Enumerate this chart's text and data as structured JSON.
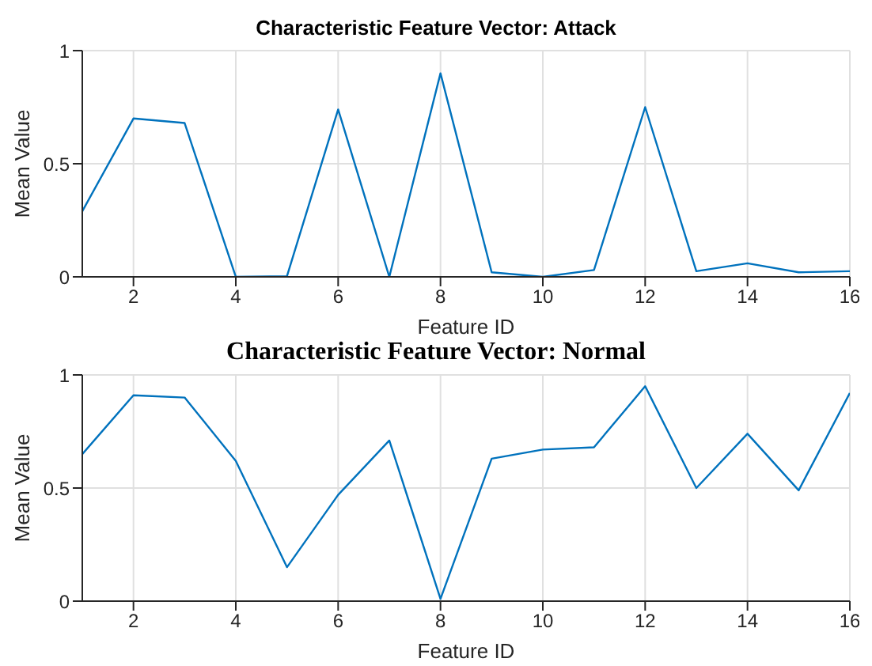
{
  "chart_data": [
    {
      "type": "line",
      "title": "Characteristic Feature Vector: Attack",
      "xlabel": "Feature ID",
      "ylabel": "Mean Value",
      "x": [
        1,
        2,
        3,
        4,
        5,
        6,
        7,
        8,
        9,
        10,
        11,
        12,
        13,
        14,
        15,
        16
      ],
      "series": [
        {
          "color": "#0072bd",
          "values": [
            0.29,
            0.7,
            0.68,
            0,
            0.003,
            0.74,
            0,
            0.9,
            0.02,
            0,
            0.03,
            0.75,
            0.025,
            0.06,
            0.02,
            0.025
          ]
        }
      ],
      "xlim": [
        1,
        16
      ],
      "xticks": [
        2,
        4,
        6,
        8,
        10,
        12,
        14,
        16
      ],
      "ylim": [
        0,
        1
      ],
      "yticks": [
        0,
        0.5,
        1
      ],
      "grid": true,
      "marker": "none",
      "line_style": "solid"
    },
    {
      "type": "line",
      "title": "Characteristic Feature Vector: Normal",
      "xlabel": "Feature ID",
      "ylabel": "Mean Value",
      "x": [
        1,
        2,
        3,
        4,
        5,
        6,
        7,
        8,
        9,
        10,
        11,
        12,
        13,
        14,
        15,
        16
      ],
      "series": [
        {
          "color": "#0072bd",
          "values": [
            0.65,
            0.91,
            0.9,
            0.62,
            0.15,
            0.47,
            0.71,
            0.01,
            0.63,
            0.67,
            0.68,
            0.95,
            0.5,
            0.74,
            0.49,
            0.92
          ]
        }
      ],
      "xlim": [
        1,
        16
      ],
      "xticks": [
        2,
        4,
        6,
        8,
        10,
        12,
        14,
        16
      ],
      "ylim": [
        0,
        1
      ],
      "yticks": [
        0,
        0.5,
        1
      ],
      "grid": true,
      "marker": "none",
      "line_style": "solid"
    }
  ]
}
